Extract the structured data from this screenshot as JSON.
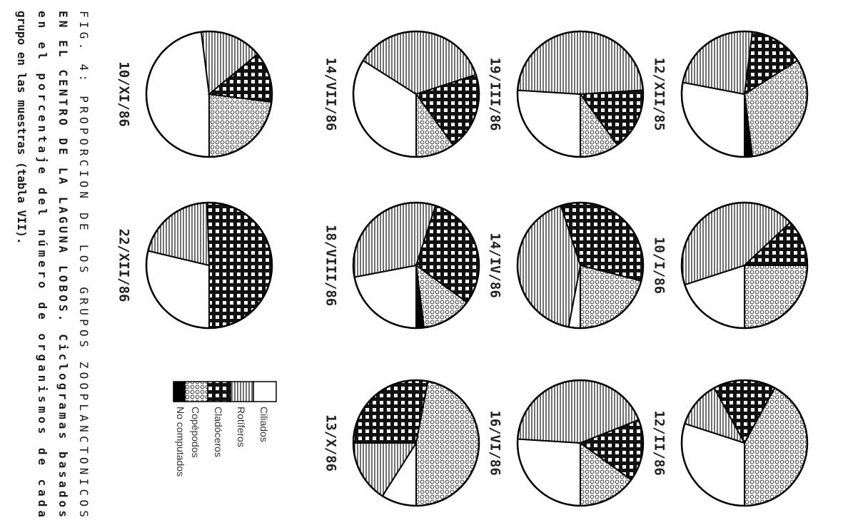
{
  "chart_data": {
    "type": "pie",
    "title": "",
    "groups": [
      "Ciliados",
      "Rotiferos",
      "Cladoceros",
      "Copepodos",
      "No computados"
    ],
    "legend": {
      "entries": [
        "Ciliados",
        "Rotíferos",
        "Cladóceros",
        "Copépodos",
        "No computados"
      ],
      "placement": "center-right"
    },
    "pies": [
      {
        "date": "12/XII/85",
        "values": [
          28,
          24,
          14,
          32,
          2
        ]
      },
      {
        "date": "10/I/86",
        "values": [
          20,
          43,
          12,
          25,
          0
        ]
      },
      {
        "date": "12/II/86",
        "values": [
          30,
          12,
          16,
          42,
          0
        ]
      },
      {
        "date": "19/III/86",
        "values": [
          26,
          48,
          16,
          10,
          0
        ]
      },
      {
        "date": "14/IV/86",
        "values": [
          3,
          42,
          34,
          21,
          0
        ]
      },
      {
        "date": "16/VI/86",
        "values": [
          26,
          43,
          16,
          15,
          0
        ]
      },
      {
        "date": "14/VII/86",
        "values": [
          34,
          36,
          20,
          10,
          0
        ]
      },
      {
        "date": "18/VIII/86",
        "values": [
          22,
          33,
          30,
          13,
          2
        ]
      },
      {
        "date": "13/X/86",
        "values": [
          9,
          16,
          28,
          47,
          0
        ]
      },
      {
        "date": "10/XI/86",
        "values": [
          48,
          16,
          13,
          23,
          0
        ]
      },
      {
        "date": "22/XII/86",
        "values": [
          29,
          21,
          51,
          0,
          0
        ]
      }
    ]
  },
  "caption": {
    "line1": "FIG.   4:   PROPORCION   DE   LOS   GRUPOS   ZOOPLANCTONICOS",
    "line2": "EN EL CENTRO DE LA LAGUNA LOBOS. Ciclogramas basados",
    "line3": "en  el  porcentaje  del  número  de  organismos  de  cada",
    "line4": "grupo en las muestras (tabla VII)."
  }
}
